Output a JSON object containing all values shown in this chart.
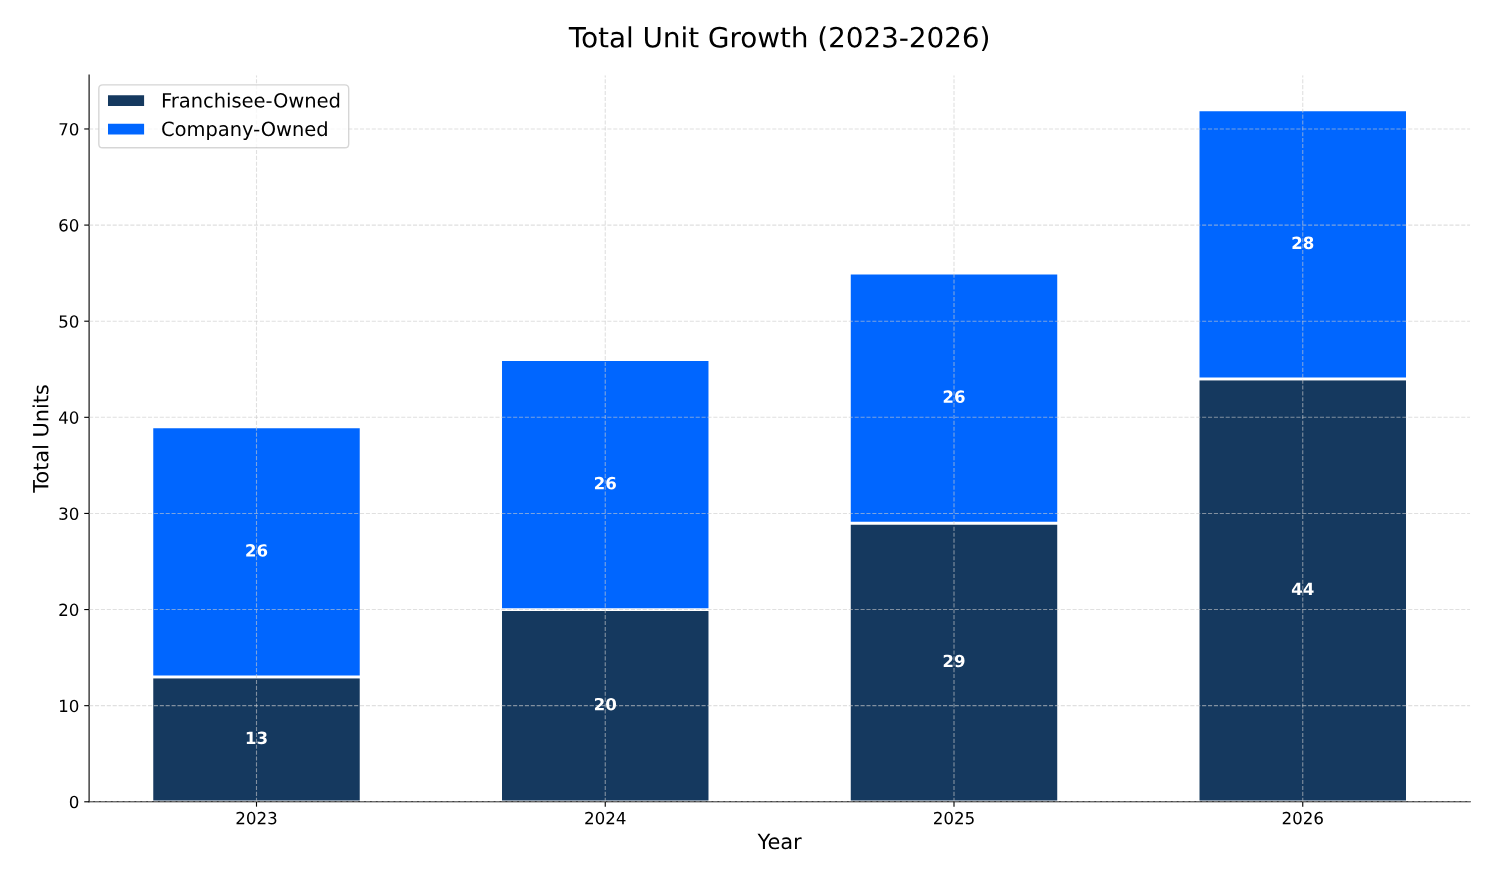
{
  "chart_data": {
    "type": "bar",
    "title": "Total Unit Growth (2023-2026)",
    "xlabel": "Year",
    "ylabel": "Total Units",
    "categories": [
      "2023",
      "2024",
      "2025",
      "2026"
    ],
    "series": [
      {
        "name": "Franchisee-Owned",
        "color": "#15395f",
        "values": [
          13,
          20,
          29,
          44
        ]
      },
      {
        "name": "Company-Owned",
        "color": "#0066ff",
        "values": [
          26,
          26,
          26,
          28
        ]
      }
    ],
    "stacked": true,
    "data_labels": true,
    "ylim": [
      0,
      75.6
    ],
    "yticks": [
      0,
      10,
      20,
      30,
      40,
      50,
      60,
      70
    ],
    "grid": true,
    "legend": "top left"
  }
}
